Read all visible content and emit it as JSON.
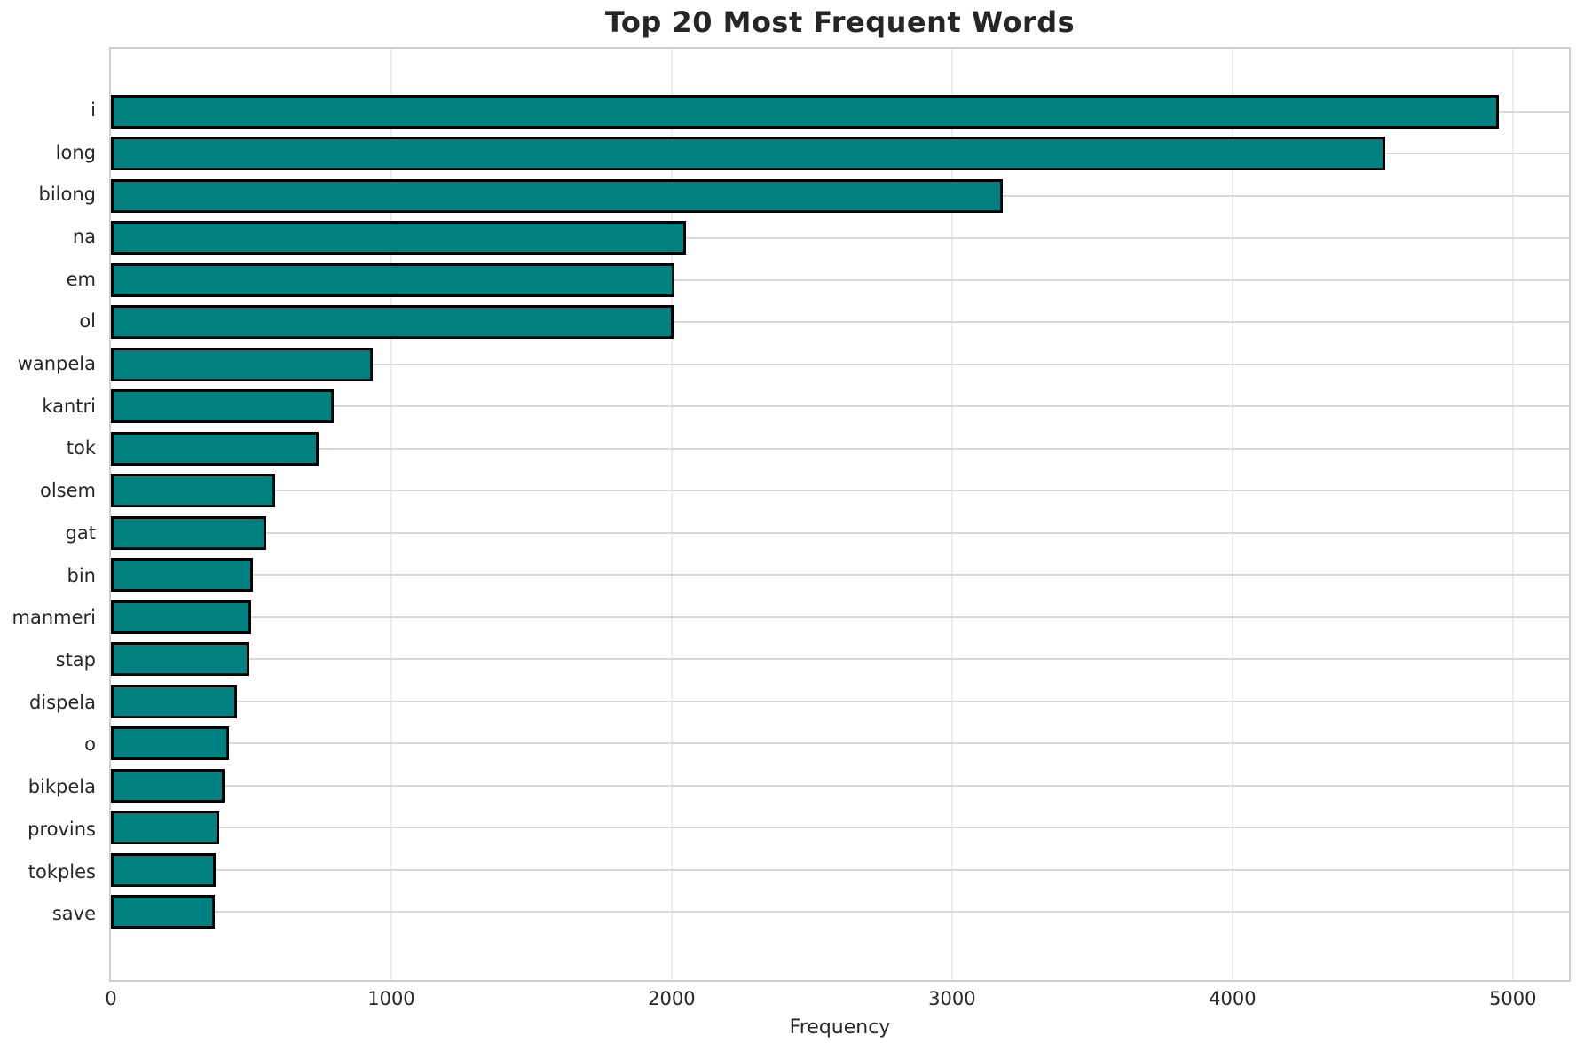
{
  "chart_data": {
    "type": "bar",
    "orientation": "horizontal",
    "title": "Top 20 Most Frequent Words",
    "xlabel": "Frequency",
    "ylabel": "",
    "categories": [
      "i",
      "long",
      "bilong",
      "na",
      "em",
      "ol",
      "wanpela",
      "kantri",
      "tok",
      "olsem",
      "gat",
      "bin",
      "manmeri",
      "stap",
      "dispela",
      "o",
      "bikpela",
      "provins",
      "tokples",
      "save"
    ],
    "values": [
      4950,
      4545,
      3180,
      2050,
      2010,
      2005,
      935,
      795,
      740,
      585,
      555,
      505,
      500,
      495,
      450,
      420,
      405,
      385,
      375,
      370
    ],
    "xlim": [
      0,
      5200
    ],
    "xticks": [
      0,
      1000,
      2000,
      3000,
      4000,
      5000
    ],
    "grid": true,
    "legend": "none",
    "colors": {
      "bar_fill": "#008080",
      "bar_edge": "#000000",
      "vertical_grid": "#ececec",
      "horizontal_grid": "#d9d9d9",
      "spine": "#cfcfcf",
      "text": "#262626",
      "background": "#ffffff"
    }
  }
}
